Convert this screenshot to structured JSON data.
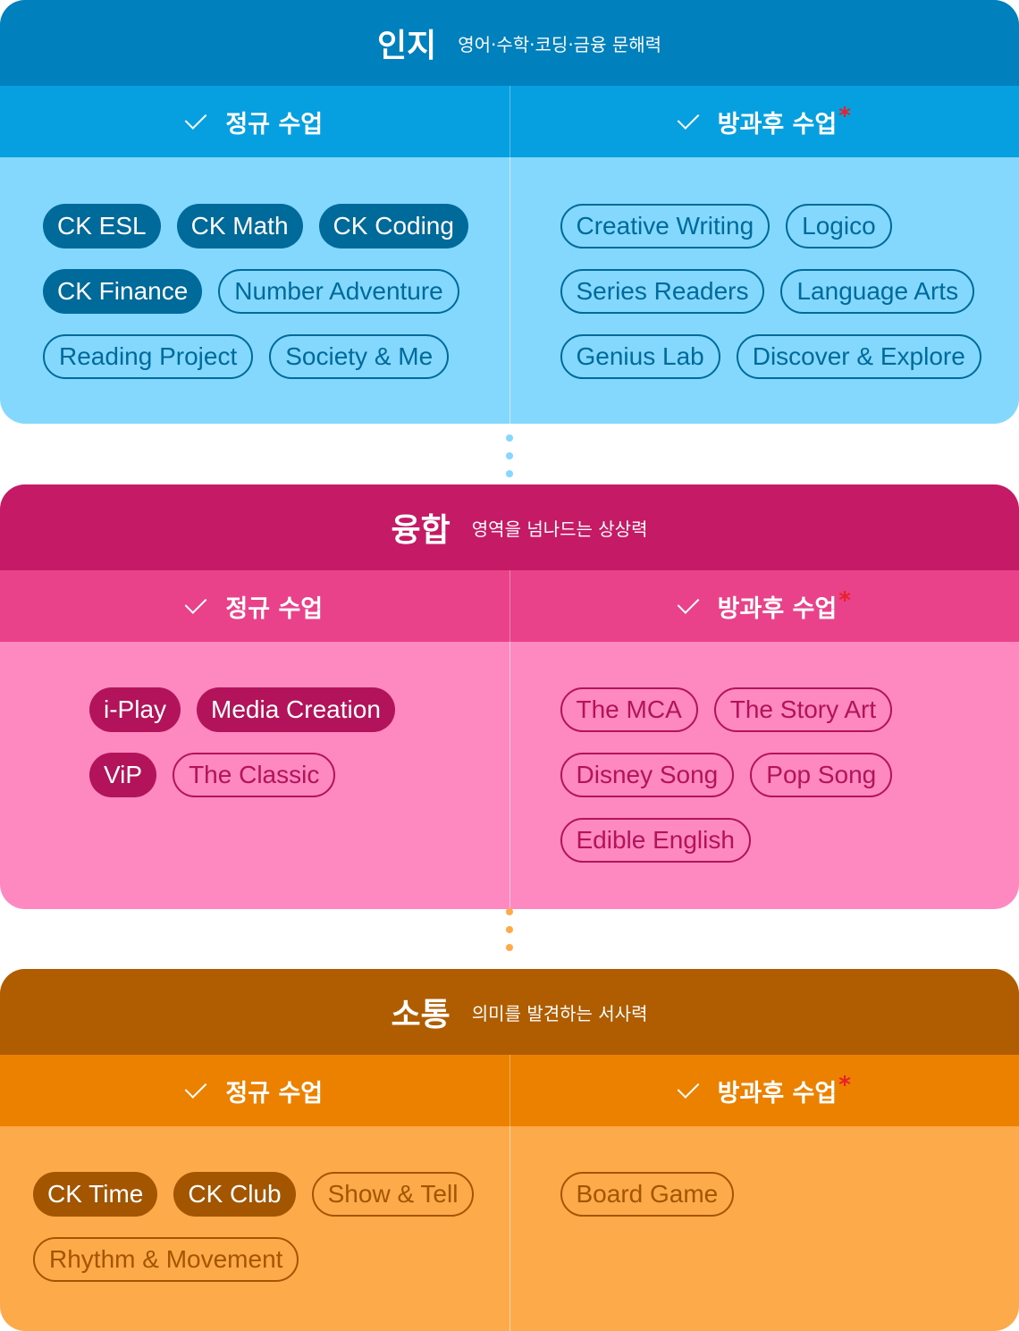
{
  "labels": {
    "regular": "정규 수업",
    "after_school": "방과후 수업",
    "asterisk": "*"
  },
  "colors": {
    "blue_header": "#0080bd",
    "blue_bg": "#84d8fd",
    "pink_header": "#c51b67",
    "pink_bg": "#fe88c0",
    "orange_header": "#af5d00",
    "orange_bg": "#fdaa4a",
    "asterisk": "#e8202a"
  },
  "sections": [
    {
      "title": "인지",
      "subtitle": "영어·수학·코딩·금융 문해력",
      "regular": {
        "filled": [
          "CK ESL",
          "CK Math",
          "CK Coding",
          "CK Finance"
        ],
        "outline": [
          "Number Adventure",
          "Reading Project",
          "Society & Me"
        ]
      },
      "after_school": [
        "Creative Writing",
        "Logico",
        "Series Readers",
        "Language Arts",
        "Genius Lab",
        "Discover & Explore"
      ]
    },
    {
      "title": "융합",
      "subtitle": "영역을 넘나드는 상상력",
      "regular": {
        "filled": [
          "i-Play",
          "Media Creation",
          "ViP"
        ],
        "outline": [
          "The Classic"
        ]
      },
      "after_school": [
        "The MCA",
        "The Story Art",
        "Disney Song",
        "Pop Song",
        "Edible English"
      ]
    },
    {
      "title": "소통",
      "subtitle": "의미를 발견하는 서사력",
      "regular": {
        "filled": [
          "CK Time",
          "CK Club"
        ],
        "outline": [
          "Show & Tell",
          "Rhythm & Movement"
        ]
      },
      "after_school": [
        "Board Game"
      ]
    }
  ]
}
